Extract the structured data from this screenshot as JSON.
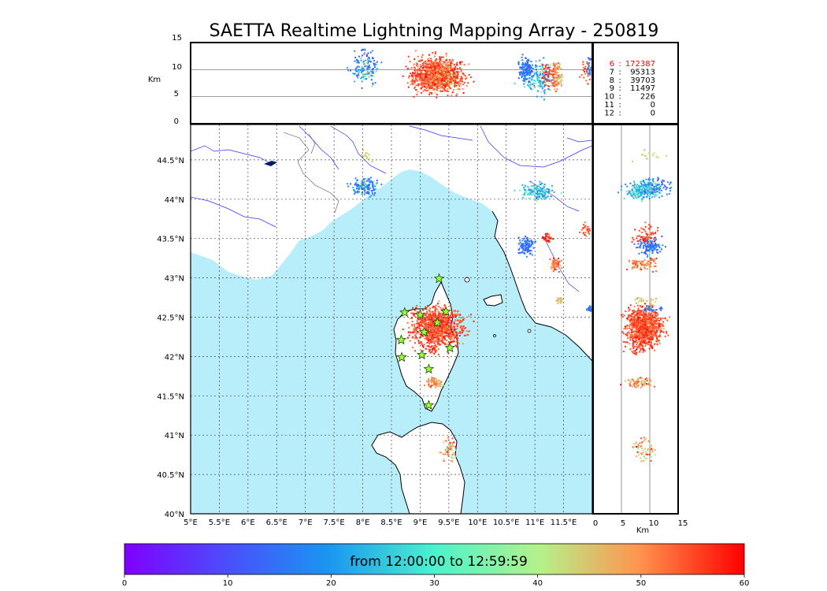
{
  "title": "SAETTA Realtime Lightning Mapping Array - 250819",
  "time_range": "from 12:00:00 to 12:59:59",
  "map": {
    "lon_labels": [
      "5°E",
      "5.5°E",
      "6°E",
      "6.5°E",
      "7°E",
      "7.5°E",
      "8°E",
      "8.5°E",
      "9°E",
      "9.5°E",
      "10°E",
      "10.5°E",
      "11°E",
      "11.5°E"
    ],
    "lat_labels": [
      "40°N",
      "40.5°N",
      "41°N",
      "41.5°N",
      "42°N",
      "42.5°N",
      "43°N",
      "43.5°N",
      "44°N",
      "44.5°N"
    ],
    "lon_range": [
      5,
      12
    ],
    "lat_range": [
      40,
      44.95
    ],
    "sea_color": "#b8eefa",
    "land_color": "#ffffff",
    "river_color": "#3333ff",
    "grid_style": "dotted"
  },
  "altitude_panel": {
    "ylabel": "Km",
    "y_ticks": [
      "0",
      "5",
      "10",
      "15"
    ],
    "x_ticks": [
      "0",
      "5",
      "10",
      "15"
    ],
    "xlabel": "Km",
    "range": [
      0,
      15
    ]
  },
  "station_counts": [
    {
      "n": "6",
      "count": "172387",
      "highlight": true
    },
    {
      "n": "7",
      "count": "95313",
      "highlight": false
    },
    {
      "n": "8",
      "count": "39703",
      "highlight": false
    },
    {
      "n": "9",
      "count": "11497",
      "highlight": false
    },
    {
      "n": "10",
      "count": "226",
      "highlight": false
    },
    {
      "n": "11",
      "count": "0",
      "highlight": false
    },
    {
      "n": "12",
      "count": "0",
      "highlight": false
    }
  ],
  "colorbar": {
    "ticks": [
      "0",
      "10",
      "20",
      "30",
      "40",
      "50",
      "60"
    ],
    "range": [
      0,
      60
    ],
    "colormap": "rainbow",
    "unit": "minutes"
  },
  "stations": [
    {
      "lon": 9.33,
      "lat": 42.99
    },
    {
      "lon": 8.73,
      "lat": 42.56
    },
    {
      "lon": 9.0,
      "lat": 42.53
    },
    {
      "lon": 9.45,
      "lat": 42.57
    },
    {
      "lon": 9.3,
      "lat": 42.43
    },
    {
      "lon": 9.07,
      "lat": 42.31
    },
    {
      "lon": 8.67,
      "lat": 42.21
    },
    {
      "lon": 9.52,
      "lat": 42.11
    },
    {
      "lon": 9.03,
      "lat": 42.02
    },
    {
      "lon": 8.68,
      "lat": 41.99
    },
    {
      "lon": 9.15,
      "lat": 41.84
    },
    {
      "lon": 9.15,
      "lat": 41.38
    }
  ],
  "chart_data": {
    "type": "scatter",
    "title": "SAETTA Realtime Lightning Mapping Array - 250819",
    "color_scale": "time in minutes after 12:00:00 (0–60)",
    "clusters": [
      {
        "lon": 8.05,
        "lat": 44.15,
        "lon_spread": 0.12,
        "lat_spread": 0.05,
        "alt": 10.5,
        "alt_spread": 2.5,
        "time": 18,
        "time_spread": 8,
        "n": 140
      },
      {
        "lon": 9.3,
        "lat": 42.38,
        "lon_spread": 0.22,
        "lat_spread": 0.12,
        "alt": 9,
        "alt_spread": 2.5,
        "time": 55,
        "time_spread": 5,
        "n": 950
      },
      {
        "lon": 9.22,
        "lat": 42.1,
        "lon_spread": 0.05,
        "lat_spread": 0.05,
        "alt": 8,
        "alt_spread": 2,
        "time": 55,
        "time_spread": 4,
        "n": 30
      },
      {
        "lon": 9.25,
        "lat": 41.67,
        "lon_spread": 0.07,
        "lat_spread": 0.03,
        "alt": 8,
        "alt_spread": 2,
        "time": 50,
        "time_spread": 8,
        "n": 70
      },
      {
        "lon": 9.5,
        "lat": 40.82,
        "lon_spread": 0.06,
        "lat_spread": 0.08,
        "alt": 9,
        "alt_spread": 1.5,
        "time": 48,
        "time_spread": 10,
        "n": 55
      },
      {
        "lon": 11.05,
        "lat": 44.1,
        "lon_spread": 0.15,
        "lat_spread": 0.05,
        "alt": 8.5,
        "alt_spread": 2.5,
        "time": 25,
        "time_spread": 10,
        "n": 150
      },
      {
        "lon": 10.85,
        "lat": 43.4,
        "lon_spread": 0.06,
        "lat_spread": 0.05,
        "alt": 10,
        "alt_spread": 2,
        "time": 15,
        "time_spread": 5,
        "n": 120
      },
      {
        "lon": 11.35,
        "lat": 43.17,
        "lon_spread": 0.05,
        "lat_spread": 0.04,
        "alt": 9,
        "alt_spread": 2,
        "time": 52,
        "time_spread": 5,
        "n": 80
      },
      {
        "lon": 11.22,
        "lat": 43.5,
        "lon_spread": 0.04,
        "lat_spread": 0.03,
        "alt": 9,
        "alt_spread": 2,
        "time": 57,
        "time_spread": 3,
        "n": 35
      },
      {
        "lon": 11.45,
        "lat": 42.72,
        "lon_spread": 0.03,
        "lat_spread": 0.02,
        "alt": 9,
        "alt_spread": 2,
        "time": 45,
        "time_spread": 8,
        "n": 20
      },
      {
        "lon": 11.9,
        "lat": 43.6,
        "lon_spread": 0.05,
        "lat_spread": 0.05,
        "alt": 10,
        "alt_spread": 2,
        "time": 55,
        "time_spread": 4,
        "n": 25
      },
      {
        "lon": 8.05,
        "lat": 44.55,
        "lon_spread": 0.05,
        "lat_spread": 0.04,
        "alt": 10,
        "alt_spread": 2,
        "time": 45,
        "time_spread": 5,
        "n": 15
      },
      {
        "lon": 11.95,
        "lat": 42.6,
        "lon_spread": 0.03,
        "lat_spread": 0.02,
        "alt": 10,
        "alt_spread": 2,
        "time": 16,
        "time_spread": 3,
        "n": 25
      }
    ]
  }
}
